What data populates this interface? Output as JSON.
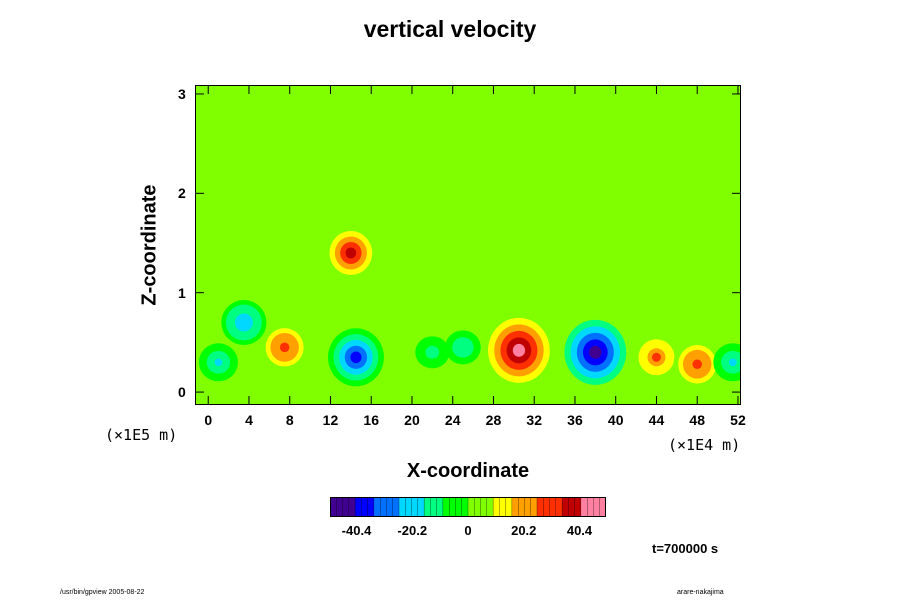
{
  "chart_data": {
    "type": "heatmap",
    "title": "vertical velocity",
    "xlabel": "X-coordinate",
    "ylabel": "Z-coordinate",
    "x_scale_note": "(×1E4 m)",
    "z_scale_note": "(×1E5 m)",
    "x_ticks": [
      "0",
      "4",
      "8",
      "12",
      "16",
      "20",
      "24",
      "28",
      "32",
      "36",
      "40",
      "44",
      "48",
      "52"
    ],
    "y_ticks": [
      "0",
      "1",
      "2",
      "3"
    ],
    "xlim": [
      -1.2,
      52.2
    ],
    "ylim": [
      -0.12,
      3.08
    ],
    "colorbar": {
      "tick_labels": [
        "-40.4",
        "-20.2",
        "0",
        "20.2",
        "40.4"
      ],
      "range": [
        -50,
        50
      ],
      "colors": [
        "#400090",
        "#0000ff",
        "#0070ff",
        "#00d8ff",
        "#00ff80",
        "#00ff00",
        "#80ff00",
        "#ffff00",
        "#ffa000",
        "#ff3000",
        "#c00000",
        "#ff80a0"
      ]
    },
    "background_value": 0,
    "features": [
      {
        "x": 7.5,
        "z": 0.45,
        "value": 28
      },
      {
        "x": 14.5,
        "z": 0.35,
        "value": -38
      },
      {
        "x": 30.5,
        "z": 0.42,
        "value": 45
      },
      {
        "x": 38.0,
        "z": 0.4,
        "value": -45
      },
      {
        "x": 44.0,
        "z": 0.35,
        "value": 25
      },
      {
        "x": 48.0,
        "z": 0.28,
        "value": 28
      },
      {
        "x": 14.0,
        "z": 1.4,
        "value": 35
      },
      {
        "x": 3.5,
        "z": 0.7,
        "value": -25
      },
      {
        "x": 1.0,
        "z": 0.3,
        "value": -18
      },
      {
        "x": 22.0,
        "z": 0.4,
        "value": -12
      },
      {
        "x": 25.0,
        "z": 0.45,
        "value": -14
      },
      {
        "x": 51.5,
        "z": 0.3,
        "value": -18
      }
    ],
    "time_label": "t=700000 s"
  },
  "footer": {
    "left": "/usr/bin/gpview 2005-08-22",
    "right": "arare-nakajima"
  }
}
